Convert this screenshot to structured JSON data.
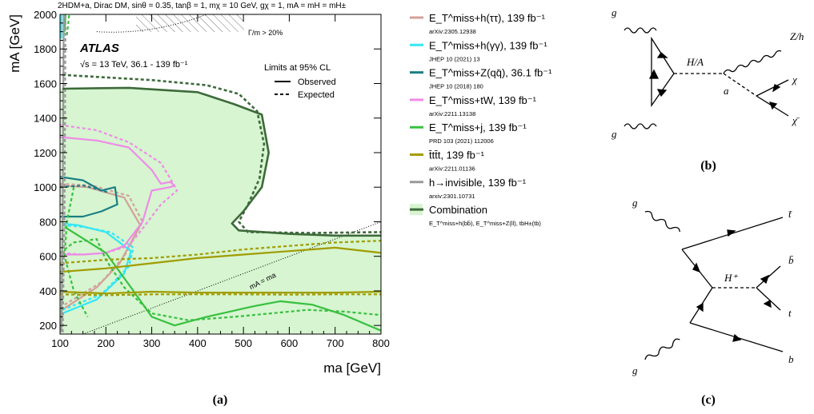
{
  "figure": {
    "panel_a_caption": "(a)",
    "panel_b_caption": "(b)",
    "panel_c_caption": "(c)"
  },
  "chart_data": {
    "type": "line",
    "title": "2HDM+a, Dirac DM, sinθ = 0.35, tanβ = 1, mχ = 10 GeV, gχ = 1, mA = mH = mH±",
    "experiment_label": "ATLAS",
    "energy_label": "√s = 13 TeV, 36.1 - 139 fb⁻¹",
    "limits_label": "Limits at 95% CL",
    "observed_label": "Observed",
    "expected_label": "Expected",
    "width_label": "Γ/m > 20%",
    "diagonal_label": "mA = ma",
    "xlabel": "ma [GeV]",
    "ylabel": "mA [GeV]",
    "xlim": [
      100,
      800
    ],
    "ylim": [
      150,
      2000
    ],
    "xticks": [
      100,
      200,
      300,
      400,
      500,
      600,
      700,
      800
    ],
    "yticks": [
      200,
      400,
      600,
      800,
      1000,
      1200,
      1400,
      1600,
      1800,
      2000
    ],
    "grid": false,
    "legend_placement": "right of plot",
    "series": [
      {
        "name": "E_T^miss+h(ττ), 139 fb⁻¹",
        "ref": "arXiv:2305.12938",
        "color": "#d4a09a",
        "observed": [
          [
            110,
            300
          ],
          [
            180,
            420
          ],
          [
            230,
            560
          ],
          [
            275,
            780
          ],
          [
            240,
            940
          ],
          [
            160,
            1000
          ],
          [
            100,
            1010
          ]
        ],
        "expected": [
          [
            110,
            320
          ],
          [
            190,
            450
          ],
          [
            240,
            600
          ],
          [
            280,
            800
          ],
          [
            250,
            950
          ],
          [
            170,
            1010
          ],
          [
            100,
            1020
          ]
        ]
      },
      {
        "name": "E_T^miss+h(γγ), 139 fb⁻¹",
        "ref": "JHEP 10 (2021) 13",
        "color": "#33e6f5",
        "observed": [
          [
            105,
            270
          ],
          [
            180,
            350
          ],
          [
            240,
            500
          ],
          [
            255,
            630
          ],
          [
            200,
            740
          ],
          [
            140,
            780
          ],
          [
            105,
            790
          ]
        ],
        "expected": [
          [
            105,
            290
          ],
          [
            190,
            380
          ],
          [
            250,
            540
          ],
          [
            260,
            650
          ],
          [
            210,
            740
          ],
          [
            150,
            770
          ],
          [
            105,
            780
          ]
        ],
        "observed_top": [
          [
            103,
            1860
          ],
          [
            103,
            2000
          ]
        ],
        "expected_top": [
          [
            108,
            1860
          ],
          [
            108,
            2000
          ]
        ]
      },
      {
        "name": "E_T^miss+Z(qq̄), 36.1 fb⁻¹",
        "ref": "JHEP 10 (2018) 180",
        "color": "#1a7f85",
        "observed": [
          [
            100,
            1060
          ],
          [
            150,
            1040
          ],
          [
            190,
            980
          ],
          [
            220,
            1000
          ],
          [
            225,
            900
          ],
          [
            190,
            860
          ],
          [
            150,
            830
          ],
          [
            100,
            830
          ]
        ],
        "expected": [
          [
            100,
            1000
          ],
          [
            150,
            1010
          ],
          [
            180,
            990
          ],
          [
            205,
            970
          ]
        ]
      },
      {
        "name": "E_T^miss+tW, 139 fb⁻¹",
        "ref": "arXiv:2211.13138",
        "color": "#ef8be8",
        "observed": [
          [
            100,
            1290
          ],
          [
            180,
            1270
          ],
          [
            250,
            1230
          ],
          [
            300,
            1100
          ],
          [
            320,
            1020
          ],
          [
            340,
            1030
          ],
          [
            350,
            1010
          ],
          [
            340,
            1000
          ],
          [
            300,
            980
          ],
          [
            280,
            800
          ],
          [
            240,
            660
          ],
          [
            200,
            620
          ],
          [
            150,
            610
          ],
          [
            100,
            610
          ]
        ],
        "expected": [
          [
            100,
            1360
          ],
          [
            180,
            1330
          ],
          [
            250,
            1260
          ],
          [
            320,
            1140
          ],
          [
            345,
            1030
          ],
          [
            355,
            980
          ],
          [
            320,
            900
          ],
          [
            280,
            760
          ],
          [
            250,
            660
          ],
          [
            200,
            620
          ],
          [
            150,
            610
          ],
          [
            100,
            620
          ]
        ]
      },
      {
        "name": "E_T^miss+j, 139 fb⁻¹",
        "ref": "PRD 103 (2021) 112006",
        "color": "#38c040",
        "observed": [
          [
            110,
            770
          ],
          [
            200,
            620
          ],
          [
            260,
            400
          ],
          [
            300,
            250
          ],
          [
            350,
            200
          ],
          [
            420,
            250
          ],
          [
            520,
            310
          ],
          [
            580,
            340
          ],
          [
            650,
            320
          ],
          [
            720,
            260
          ],
          [
            800,
            170
          ]
        ],
        "expected": [
          [
            100,
            620
          ],
          [
            130,
            680
          ],
          [
            180,
            700
          ],
          [
            200,
            580
          ],
          [
            240,
            420
          ],
          [
            300,
            270
          ],
          [
            380,
            230
          ],
          [
            480,
            250
          ],
          [
            560,
            270
          ],
          [
            640,
            290
          ],
          [
            720,
            280
          ],
          [
            800,
            260
          ]
        ],
        "expected_extra": [
          [
            130,
            1000
          ],
          [
            115,
            800
          ],
          [
            110,
            600
          ],
          [
            130,
            400
          ],
          [
            160,
            250
          ]
        ],
        "observed_top": [
          [
            110,
            1900
          ],
          [
            112,
            2000
          ]
        ],
        "expected_top": [
          [
            115,
            1880
          ],
          [
            120,
            2000
          ]
        ]
      },
      {
        "name": "t̄tt̄t, 139 fb⁻¹",
        "ref": "arXiv:2211.01136",
        "color": "#a19c00",
        "observed": [
          [
            100,
            510
          ],
          [
            200,
            530
          ],
          [
            300,
            560
          ],
          [
            400,
            590
          ],
          [
            500,
            610
          ],
          [
            600,
            630
          ],
          [
            700,
            650
          ],
          [
            800,
            620
          ]
        ],
        "observed_low": [
          [
            100,
            395
          ],
          [
            200,
            385
          ],
          [
            300,
            395
          ],
          [
            400,
            390
          ],
          [
            500,
            390
          ],
          [
            600,
            390
          ],
          [
            700,
            390
          ],
          [
            800,
            395
          ]
        ],
        "expected": [
          [
            100,
            560
          ],
          [
            200,
            580
          ],
          [
            300,
            590
          ],
          [
            400,
            610
          ],
          [
            500,
            640
          ],
          [
            600,
            660
          ],
          [
            700,
            680
          ],
          [
            800,
            690
          ]
        ],
        "expected_low": [
          [
            100,
            380
          ],
          [
            200,
            375
          ],
          [
            300,
            380
          ],
          [
            400,
            380
          ],
          [
            500,
            380
          ],
          [
            600,
            378
          ],
          [
            700,
            380
          ],
          [
            800,
            380
          ]
        ]
      },
      {
        "name": "h→invisible, 139 fb⁻¹",
        "ref": "arxiv:2301.10731",
        "color": "#999999",
        "observed": [
          [
            103,
            160
          ],
          [
            106,
            900
          ],
          [
            108,
            2000
          ]
        ],
        "expected": [
          [
            106,
            160
          ],
          [
            110,
            900
          ],
          [
            112,
            2000
          ]
        ]
      },
      {
        "name": "Combination",
        "ref": "E_T^miss+h(bb̄), E_T^miss+Z(ll), tbH±(tb)",
        "color": "#3d6a3a",
        "fill": "#d6f5d0",
        "observed": [
          [
            105,
            1570
          ],
          [
            250,
            1575
          ],
          [
            400,
            1550
          ],
          [
            480,
            1480
          ],
          [
            540,
            1420
          ],
          [
            555,
            1200
          ],
          [
            540,
            1000
          ],
          [
            500,
            860
          ],
          [
            475,
            790
          ],
          [
            490,
            750
          ],
          [
            600,
            730
          ],
          [
            700,
            720
          ],
          [
            800,
            720
          ]
        ],
        "expected": [
          [
            105,
            1650
          ],
          [
            300,
            1620
          ],
          [
            420,
            1590
          ],
          [
            490,
            1540
          ],
          [
            530,
            1440
          ],
          [
            545,
            1250
          ],
          [
            535,
            1050
          ],
          [
            510,
            900
          ],
          [
            490,
            800
          ],
          [
            510,
            740
          ],
          [
            650,
            735
          ],
          [
            800,
            740
          ]
        ]
      }
    ]
  },
  "diagram_b": {
    "labels": [
      "g",
      "g",
      "H/A",
      "a",
      "Z/h",
      "χ",
      "χ̄"
    ]
  },
  "diagram_c": {
    "labels": [
      "g",
      "g",
      "H⁺",
      "t̄",
      "b̄",
      "t",
      "b"
    ]
  }
}
